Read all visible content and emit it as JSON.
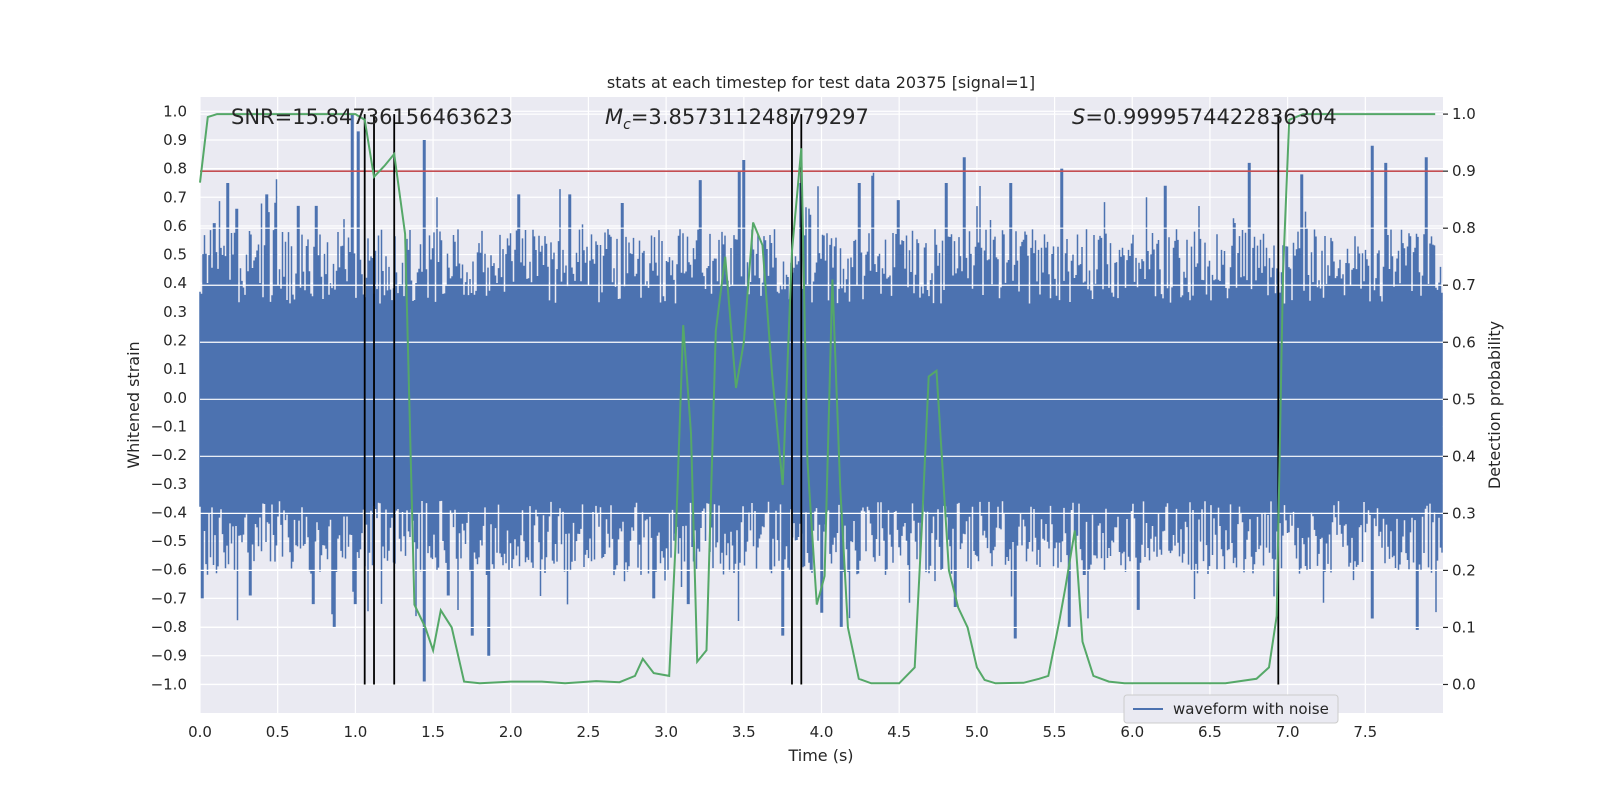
{
  "chart_data": {
    "type": "line",
    "title": "stats at each timestep for test data 20375 [signal=1]",
    "xlabel": "Time (s)",
    "ylabel": "Whitened strain",
    "y2label": "Detection probability",
    "xlim": [
      0.0,
      8.0
    ],
    "ylim": [
      -1.1,
      1.05
    ],
    "y2lim": [
      -0.05,
      1.03
    ],
    "xticks": [
      "0.0",
      "0.5",
      "1.0",
      "1.5",
      "2.0",
      "2.5",
      "3.0",
      "3.5",
      "4.0",
      "4.5",
      "5.0",
      "5.5",
      "6.0",
      "6.5",
      "7.0",
      "7.5"
    ],
    "yticks": [
      "1.0",
      "0.9",
      "0.8",
      "0.7",
      "0.6",
      "0.5",
      "0.4",
      "0.3",
      "0.2",
      "0.1",
      "0.0",
      "-0.1",
      "-0.2",
      "-0.3",
      "-0.4",
      "-0.5",
      "-0.6",
      "-0.7",
      "-0.8",
      "-0.9",
      "-1.0"
    ],
    "y2ticks": [
      "1.0",
      "0.9",
      "0.8",
      "0.7",
      "0.6",
      "0.5",
      "0.4",
      "0.3",
      "0.2",
      "0.1",
      "0.0"
    ],
    "annotations": {
      "snr": "SNR=15.84736156463623",
      "mc_symbol": "M",
      "mc_sub": "c",
      "mc_value": "=3.857311248779297",
      "s_symbol": "S",
      "s_value": "=0.9999574422836304"
    },
    "legend": {
      "label": "waveform with noise",
      "position": "lower-right"
    },
    "threshold": 0.9,
    "vlines": [
      1.06,
      1.12,
      1.25,
      3.81,
      3.87,
      6.94
    ],
    "series": [
      {
        "name": "waveform with noise",
        "color": "#4c72b0",
        "envelope": {
          "pos_base": 0.42,
          "neg_base": -0.45,
          "spikes": [
            [
              0.09,
              0.61
            ],
            [
              0.18,
              0.75
            ],
            [
              0.24,
              0.66
            ],
            [
              0.43,
              0.71
            ],
            [
              0.64,
              0.67
            ],
            [
              0.75,
              0.67
            ],
            [
              0.98,
              0.99
            ],
            [
              1.02,
              0.93
            ],
            [
              1.45,
              0.9
            ],
            [
              2.05,
              0.71
            ],
            [
              2.38,
              0.71
            ],
            [
              2.72,
              0.68
            ],
            [
              3.22,
              0.76
            ],
            [
              3.47,
              0.79
            ],
            [
              3.5,
              0.83
            ],
            [
              3.87,
              0.75
            ],
            [
              4.25,
              0.75
            ],
            [
              4.5,
              0.69
            ],
            [
              4.8,
              0.75
            ],
            [
              4.92,
              0.84
            ],
            [
              5.22,
              0.75
            ],
            [
              5.55,
              0.8
            ],
            [
              6.22,
              0.74
            ],
            [
              6.75,
              0.82
            ],
            [
              7.09,
              0.78
            ],
            [
              7.54,
              0.88
            ],
            [
              7.63,
              0.82
            ],
            [
              7.89,
              0.84
            ]
          ],
          "dips": [
            [
              0.02,
              -0.7
            ],
            [
              0.32,
              -0.69
            ],
            [
              0.73,
              -0.72
            ],
            [
              0.87,
              -0.8
            ],
            [
              1.0,
              -0.72
            ],
            [
              1.45,
              -0.99
            ],
            [
              1.6,
              -0.69
            ],
            [
              1.76,
              -0.83
            ],
            [
              1.86,
              -0.9
            ],
            [
              2.92,
              -0.7
            ],
            [
              3.15,
              -0.72
            ],
            [
              3.75,
              -0.83
            ],
            [
              4.0,
              -0.75
            ],
            [
              4.13,
              -0.8
            ],
            [
              4.86,
              -0.73
            ],
            [
              5.25,
              -0.84
            ],
            [
              5.6,
              -0.8
            ],
            [
              6.04,
              -0.74
            ],
            [
              7.55,
              -0.77
            ],
            [
              7.84,
              -0.81
            ]
          ]
        }
      },
      {
        "name": "detection probability",
        "color": "#55a868",
        "axis": "right",
        "x": [
          0.0,
          0.05,
          0.11,
          0.2,
          0.5,
          0.7,
          0.85,
          0.95,
          1.0,
          1.06,
          1.12,
          1.19,
          1.25,
          1.32,
          1.38,
          1.45,
          1.5,
          1.55,
          1.62,
          1.7,
          1.8,
          2.0,
          2.2,
          2.35,
          2.55,
          2.7,
          2.8,
          2.85,
          2.92,
          3.02,
          3.06,
          3.11,
          3.16,
          3.2,
          3.26,
          3.32,
          3.38,
          3.45,
          3.5,
          3.56,
          3.62,
          3.68,
          3.75,
          3.81,
          3.87,
          3.91,
          3.97,
          4.02,
          4.07,
          4.12,
          4.17,
          4.24,
          4.32,
          4.4,
          4.5,
          4.6,
          4.65,
          4.69,
          4.74,
          4.82,
          4.88,
          4.94,
          5.0,
          5.05,
          5.12,
          5.3,
          5.4,
          5.46,
          5.53,
          5.57,
          5.63,
          5.68,
          5.75,
          5.85,
          5.95,
          6.1,
          6.4,
          6.6,
          6.8,
          6.88,
          6.93,
          6.97,
          7.01,
          7.1,
          7.3,
          7.6,
          7.95
        ],
        "y": [
          0.88,
          0.995,
          1.0,
          1.0,
          1.0,
          1.0,
          1.0,
          1.0,
          1.0,
          0.99,
          0.89,
          0.91,
          0.93,
          0.79,
          0.14,
          0.1,
          0.06,
          0.13,
          0.1,
          0.005,
          0.002,
          0.005,
          0.005,
          0.002,
          0.006,
          0.004,
          0.015,
          0.045,
          0.02,
          0.015,
          0.24,
          0.63,
          0.44,
          0.04,
          0.06,
          0.62,
          0.75,
          0.52,
          0.6,
          0.81,
          0.77,
          0.55,
          0.35,
          0.76,
          0.94,
          0.39,
          0.14,
          0.19,
          0.71,
          0.35,
          0.1,
          0.01,
          0.002,
          0.002,
          0.002,
          0.03,
          0.3,
          0.54,
          0.55,
          0.2,
          0.135,
          0.1,
          0.03,
          0.008,
          0.002,
          0.003,
          0.01,
          0.015,
          0.11,
          0.17,
          0.27,
          0.075,
          0.015,
          0.005,
          0.002,
          0.002,
          0.002,
          0.002,
          0.01,
          0.03,
          0.12,
          0.72,
          0.99,
          1.0,
          1.0,
          1.0,
          1.0
        ]
      }
    ],
    "colors": {
      "background": "#eaeaf2",
      "grid": "#ffffff",
      "strain": "#4c72b0",
      "probability": "#55a868",
      "threshold": "#c44e52",
      "vline": "#000000"
    }
  }
}
